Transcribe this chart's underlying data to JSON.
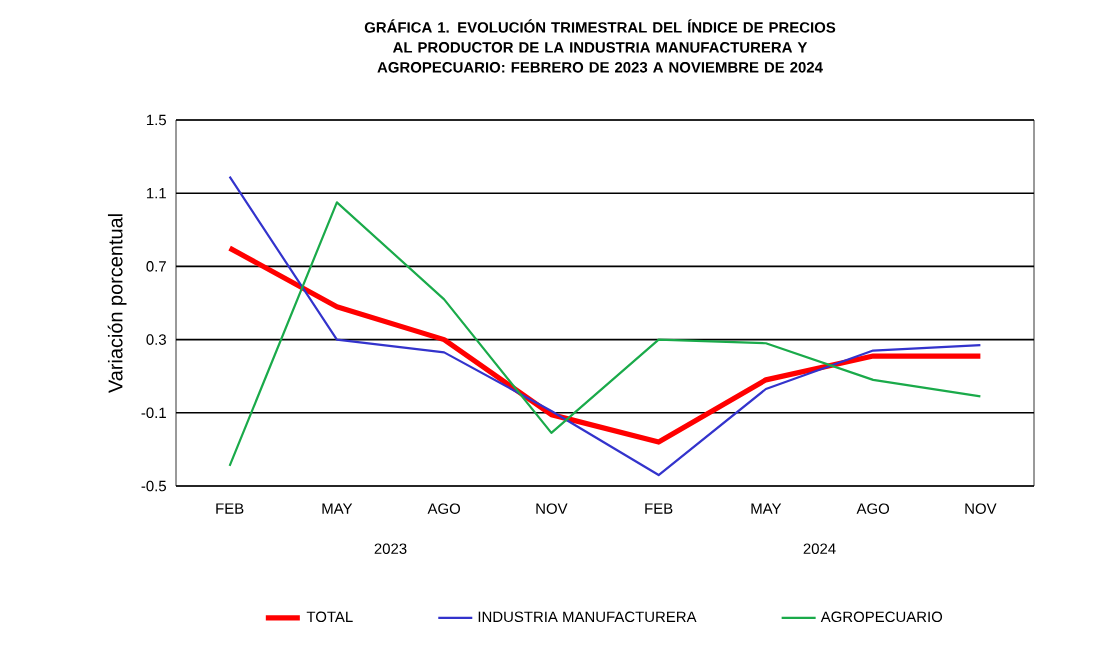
{
  "chart_data": {
    "type": "line",
    "title": "GRÁFICA 1. EVOLUCIÓN TRIMESTRAL DEL ÍNDICE DE PRECIOS AL PRODUCTOR DE LA INDUSTRIA MANUFACTURERA Y AGROPECUARIO: FEBRERO DE 2023 A NOVIEMBRE DE 2024",
    "ylabel": "Variación porcentual",
    "categories": [
      "FEB",
      "MAY",
      "AGO",
      "NOV",
      "FEB",
      "MAY",
      "AGO",
      "NOV"
    ],
    "annotations": [
      "2023",
      "2024"
    ],
    "series": [
      {
        "name": "TOTAL",
        "color": "#ff0000",
        "values": [
          0.8,
          0.48,
          0.3,
          -0.11,
          -0.26,
          0.08,
          0.21,
          0.21
        ]
      },
      {
        "name": "INDUSTRIA MANUFACTURERA",
        "color": "#3333cc",
        "values": [
          1.19,
          0.3,
          0.23,
          -0.09,
          -0.44,
          0.03,
          0.24,
          0.27
        ]
      },
      {
        "name": "AGROPECUARIO",
        "color": "#1aaa4a",
        "values": [
          -0.39,
          1.05,
          0.52,
          -0.21,
          0.3,
          0.28,
          0.08,
          -0.01
        ]
      }
    ],
    "ylim": [
      -0.5,
      1.5
    ],
    "yticks": [
      -0.5,
      -0.1,
      0.3,
      0.7,
      1.1,
      1.5
    ],
    "grid": "y",
    "legend": "bottom",
    "marker": "none",
    "line_style": "solid"
  }
}
